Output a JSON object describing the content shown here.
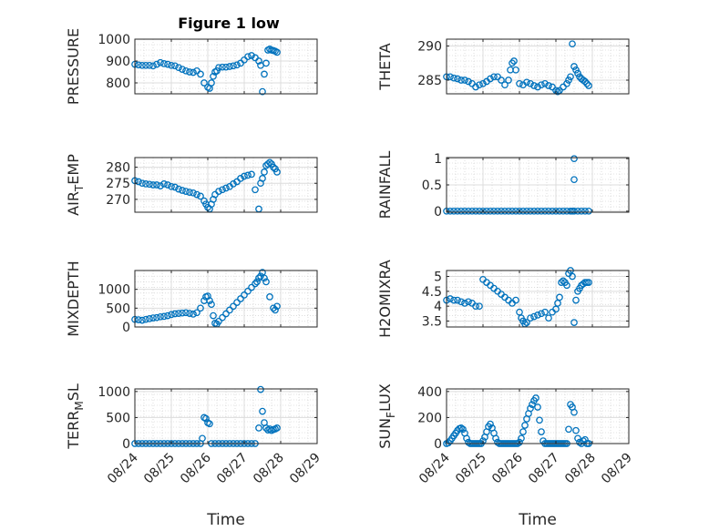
{
  "figure": {
    "title": "Figure 1 low",
    "marker_color": "#0072BD",
    "grid": "major-and-minor-dotted"
  },
  "chart_data": [
    {
      "type": "scatter",
      "ylabel": "PRESSURE",
      "xlim": [
        0,
        5
      ],
      "ylim": [
        750,
        1000
      ],
      "yticks": [
        800,
        900,
        1000
      ],
      "xticklabels": [],
      "x": [
        0,
        0.1,
        0.2,
        0.3,
        0.4,
        0.5,
        0.6,
        0.7,
        0.8,
        0.9,
        1.0,
        1.1,
        1.2,
        1.3,
        1.4,
        1.5,
        1.6,
        1.7,
        1.8,
        1.9,
        2.0,
        2.05,
        2.1,
        2.15,
        2.2,
        2.25,
        2.3,
        2.4,
        2.5,
        2.6,
        2.7,
        2.8,
        2.9,
        3.0,
        3.1,
        3.2,
        3.3,
        3.4,
        3.45,
        3.5,
        3.55,
        3.6,
        3.65,
        3.7,
        3.75,
        3.8,
        3.85,
        3.9
      ],
      "y": [
        885,
        882,
        880,
        880,
        880,
        878,
        885,
        893,
        888,
        885,
        880,
        878,
        870,
        862,
        855,
        850,
        848,
        855,
        840,
        800,
        780,
        775,
        800,
        830,
        850,
        855,
        870,
        872,
        872,
        875,
        878,
        882,
        890,
        905,
        920,
        925,
        915,
        900,
        880,
        760,
        840,
        890,
        950,
        955,
        950,
        948,
        945,
        940
      ]
    },
    {
      "type": "scatter",
      "ylabel": "THETA",
      "xlim": [
        0,
        5
      ],
      "ylim": [
        283,
        291
      ],
      "yticks": [
        285,
        290
      ],
      "xticklabels": [],
      "x": [
        0,
        0.1,
        0.2,
        0.3,
        0.4,
        0.5,
        0.6,
        0.7,
        0.8,
        0.9,
        1.0,
        1.1,
        1.2,
        1.3,
        1.4,
        1.5,
        1.6,
        1.7,
        1.75,
        1.8,
        1.85,
        1.9,
        2.0,
        2.1,
        2.2,
        2.3,
        2.4,
        2.5,
        2.6,
        2.7,
        2.8,
        2.9,
        3.0,
        3.05,
        3.1,
        3.2,
        3.3,
        3.35,
        3.4,
        3.45,
        3.5,
        3.55,
        3.6,
        3.65,
        3.7,
        3.75,
        3.8,
        3.85,
        3.9
      ],
      "y": [
        285.5,
        285.5,
        285.3,
        285.2,
        285.0,
        285.0,
        284.8,
        284.5,
        284.0,
        284.3,
        284.5,
        284.8,
        285.2,
        285.5,
        285.5,
        285.0,
        284.3,
        285.0,
        286.5,
        287.5,
        287.8,
        286.5,
        284.5,
        284.3,
        284.7,
        284.5,
        284.2,
        284.0,
        284.3,
        284.5,
        284.2,
        284.0,
        283.5,
        283.3,
        283.5,
        284.0,
        284.5,
        285.0,
        285.5,
        290.3,
        287.0,
        286.5,
        286.0,
        285.5,
        285.2,
        285.0,
        284.8,
        284.5,
        284.2
      ]
    },
    {
      "type": "scatter",
      "ylabel_parts": [
        "AIR",
        "T",
        "EMP"
      ],
      "xlim": [
        0,
        5
      ],
      "ylim": [
        266,
        283
      ],
      "yticks": [
        270,
        275,
        280
      ],
      "xticklabels": [],
      "x": [
        0,
        0.1,
        0.2,
        0.3,
        0.4,
        0.5,
        0.6,
        0.7,
        0.8,
        0.9,
        1.0,
        1.1,
        1.2,
        1.3,
        1.4,
        1.5,
        1.6,
        1.7,
        1.8,
        1.9,
        1.95,
        2.0,
        2.05,
        2.1,
        2.15,
        2.2,
        2.3,
        2.4,
        2.5,
        2.6,
        2.7,
        2.8,
        2.9,
        3.0,
        3.1,
        3.2,
        3.3,
        3.4,
        3.45,
        3.5,
        3.55,
        3.6,
        3.65,
        3.7,
        3.75,
        3.8,
        3.85,
        3.9
      ],
      "y": [
        275.8,
        275.5,
        275.0,
        274.8,
        274.7,
        274.5,
        274.5,
        274.2,
        274.8,
        274.5,
        274.0,
        273.8,
        273.2,
        272.8,
        272.5,
        272.2,
        272.0,
        271.5,
        271.0,
        269.5,
        268.5,
        267.5,
        267.0,
        268.5,
        270.0,
        271.5,
        272.5,
        273.0,
        273.5,
        274.0,
        274.8,
        275.5,
        276.5,
        277.2,
        277.5,
        277.8,
        273.0,
        267.0,
        275.0,
        276.5,
        278.5,
        280.5,
        281.0,
        281.5,
        281.0,
        280.0,
        279.5,
        278.5
      ]
    },
    {
      "type": "scatter",
      "ylabel": "RAINFALL",
      "xlim": [
        0,
        5
      ],
      "ylim": [
        -0.02,
        1.02
      ],
      "yticks": [
        0,
        0.5,
        1
      ],
      "ytickstrings": [
        "0",
        "0.5",
        "1"
      ],
      "xticklabels": [],
      "x": [
        0,
        0.1,
        0.2,
        0.3,
        0.4,
        0.5,
        0.6,
        0.7,
        0.8,
        0.9,
        1.0,
        1.1,
        1.2,
        1.3,
        1.4,
        1.5,
        1.6,
        1.7,
        1.8,
        1.9,
        2.0,
        2.1,
        2.2,
        2.3,
        2.4,
        2.5,
        2.6,
        2.7,
        2.8,
        2.9,
        3.0,
        3.1,
        3.2,
        3.3,
        3.4,
        3.45,
        3.5,
        3.5,
        3.5,
        3.6,
        3.7,
        3.8,
        3.9
      ],
      "y": [
        0,
        0,
        0,
        0,
        0,
        0,
        0,
        0,
        0,
        0,
        0,
        0,
        0,
        0,
        0,
        0,
        0,
        0,
        0,
        0,
        0,
        0,
        0,
        0,
        0,
        0,
        0,
        0,
        0,
        0,
        0,
        0,
        0,
        0,
        0,
        0,
        1.0,
        0.6,
        0,
        0,
        0,
        0,
        0
      ]
    },
    {
      "type": "scatter",
      "ylabel": "MIXDEPTH",
      "xlim": [
        0,
        5
      ],
      "ylim": [
        0,
        1500
      ],
      "yticks": [
        0,
        500,
        1000
      ],
      "xticklabels": [],
      "x": [
        0,
        0.1,
        0.2,
        0.3,
        0.4,
        0.5,
        0.6,
        0.7,
        0.8,
        0.9,
        1.0,
        1.1,
        1.2,
        1.3,
        1.4,
        1.5,
        1.6,
        1.7,
        1.8,
        1.9,
        1.95,
        2.0,
        2.05,
        2.1,
        2.15,
        2.2,
        2.25,
        2.3,
        2.4,
        2.5,
        2.6,
        2.7,
        2.8,
        2.9,
        3.0,
        3.1,
        3.2,
        3.3,
        3.35,
        3.4,
        3.45,
        3.5,
        3.55,
        3.6,
        3.7,
        3.8,
        3.85,
        3.9
      ],
      "y": [
        200,
        190,
        180,
        200,
        220,
        240,
        250,
        270,
        280,
        300,
        330,
        350,
        360,
        370,
        380,
        360,
        340,
        380,
        500,
        700,
        800,
        820,
        700,
        600,
        300,
        100,
        80,
        150,
        250,
        350,
        450,
        550,
        650,
        750,
        850,
        950,
        1050,
        1150,
        1200,
        1300,
        1350,
        1450,
        1300,
        1200,
        800,
        500,
        450,
        550
      ]
    },
    {
      "type": "scatter",
      "ylabel": "H2OMIXRA",
      "xlim": [
        0,
        5
      ],
      "ylim": [
        3.3,
        5.2
      ],
      "yticks": [
        3.5,
        4,
        4.5,
        5
      ],
      "ytickstrings": [
        "3.5",
        "4",
        "4.5",
        "5"
      ],
      "xticklabels": [],
      "x": [
        0,
        0.1,
        0.2,
        0.3,
        0.4,
        0.5,
        0.6,
        0.7,
        0.8,
        0.9,
        1.0,
        1.1,
        1.2,
        1.3,
        1.4,
        1.5,
        1.6,
        1.7,
        1.8,
        1.9,
        2.0,
        2.05,
        2.1,
        2.15,
        2.2,
        2.3,
        2.4,
        2.5,
        2.6,
        2.7,
        2.8,
        2.9,
        3.0,
        3.05,
        3.1,
        3.15,
        3.2,
        3.25,
        3.3,
        3.35,
        3.4,
        3.45,
        3.5,
        3.55,
        3.6,
        3.65,
        3.7,
        3.75,
        3.8,
        3.85,
        3.9
      ],
      "y": [
        4.2,
        4.25,
        4.2,
        4.2,
        4.15,
        4.1,
        4.15,
        4.1,
        4.0,
        4.0,
        4.9,
        4.8,
        4.7,
        4.6,
        4.5,
        4.4,
        4.3,
        4.2,
        4.1,
        4.2,
        3.8,
        3.6,
        3.5,
        3.4,
        3.45,
        3.6,
        3.65,
        3.7,
        3.75,
        3.8,
        3.6,
        3.8,
        3.9,
        4.1,
        4.3,
        4.8,
        4.85,
        4.8,
        4.7,
        5.1,
        5.2,
        5.0,
        3.45,
        4.2,
        4.5,
        4.6,
        4.7,
        4.75,
        4.8,
        4.8,
        4.8
      ]
    },
    {
      "type": "scatter",
      "ylabel_parts": [
        "TERR",
        "M",
        "SL"
      ],
      "xlim": [
        0,
        5
      ],
      "ylim": [
        0,
        1050
      ],
      "yticks": [
        0,
        500,
        1000
      ],
      "xticklabels": [
        "08/24",
        "08/25",
        "08/26",
        "08/27",
        "08/28",
        "08/29"
      ],
      "xlabel": "Time",
      "x": [
        0,
        0.1,
        0.2,
        0.3,
        0.4,
        0.5,
        0.6,
        0.7,
        0.8,
        0.9,
        1.0,
        1.1,
        1.2,
        1.3,
        1.4,
        1.5,
        1.6,
        1.7,
        1.8,
        1.85,
        1.9,
        1.95,
        2.0,
        2.05,
        2.1,
        2.2,
        2.3,
        2.4,
        2.5,
        2.6,
        2.7,
        2.8,
        2.9,
        3.0,
        3.1,
        3.2,
        3.3,
        3.4,
        3.45,
        3.5,
        3.55,
        3.6,
        3.65,
        3.7,
        3.75,
        3.8,
        3.85,
        3.9
      ],
      "y": [
        0,
        0,
        0,
        0,
        0,
        0,
        0,
        0,
        0,
        0,
        0,
        0,
        0,
        0,
        0,
        0,
        0,
        0,
        0,
        100,
        500,
        480,
        400,
        380,
        0,
        0,
        0,
        0,
        0,
        0,
        0,
        0,
        0,
        0,
        0,
        0,
        0,
        300,
        1040,
        620,
        400,
        300,
        260,
        280,
        250,
        270,
        280,
        300
      ]
    },
    {
      "type": "scatter",
      "ylabel_parts": [
        "SUN",
        "F",
        "LUX"
      ],
      "xlim": [
        0,
        5
      ],
      "ylim": [
        0,
        420
      ],
      "yticks": [
        0,
        200,
        400
      ],
      "xticklabels": [
        "08/24",
        "08/25",
        "08/26",
        "08/27",
        "08/28",
        "08/29"
      ],
      "xlabel": "Time",
      "x": [
        0,
        0.05,
        0.1,
        0.15,
        0.2,
        0.25,
        0.3,
        0.35,
        0.4,
        0.45,
        0.5,
        0.55,
        0.6,
        0.65,
        0.7,
        0.75,
        0.8,
        0.85,
        0.9,
        0.95,
        1.0,
        1.05,
        1.1,
        1.15,
        1.2,
        1.25,
        1.3,
        1.35,
        1.4,
        1.45,
        1.5,
        1.55,
        1.6,
        1.65,
        1.7,
        1.75,
        1.8,
        1.85,
        1.9,
        1.95,
        2.0,
        2.05,
        2.1,
        2.15,
        2.2,
        2.25,
        2.3,
        2.35,
        2.4,
        2.45,
        2.5,
        2.55,
        2.6,
        2.65,
        2.7,
        2.75,
        2.8,
        2.85,
        2.9,
        2.95,
        3.0,
        3.05,
        3.1,
        3.15,
        3.2,
        3.25,
        3.3,
        3.35,
        3.4,
        3.45,
        3.5,
        3.55,
        3.6,
        3.65,
        3.7,
        3.75,
        3.8,
        3.85,
        3.9
      ],
      "y": [
        0,
        5,
        20,
        40,
        60,
        80,
        100,
        115,
        120,
        110,
        80,
        40,
        10,
        0,
        0,
        0,
        0,
        0,
        0,
        0,
        20,
        50,
        90,
        130,
        150,
        120,
        80,
        40,
        10,
        0,
        0,
        0,
        0,
        0,
        0,
        0,
        0,
        0,
        0,
        0,
        10,
        40,
        90,
        140,
        190,
        230,
        270,
        300,
        330,
        350,
        280,
        180,
        90,
        20,
        0,
        0,
        0,
        0,
        0,
        0,
        0,
        0,
        0,
        0,
        0,
        0,
        0,
        110,
        300,
        280,
        240,
        100,
        40,
        10,
        0,
        20,
        30,
        0,
        0
      ]
    }
  ]
}
